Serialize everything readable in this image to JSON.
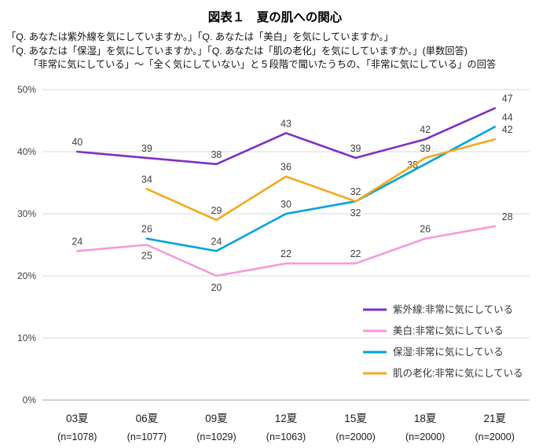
{
  "title": "図表１　夏の肌への関心",
  "subtitle_lines": [
    "「Q. あなたは紫外線を気にしていますか。」「Q. あなたは「美白」を気にしていますか。」",
    "「Q. あなたは「保湿」を気にしていますか。」「Q. あなたは「肌の老化」を気にしていますか。」(単数回答)",
    "「非常に気にしている」～「全く気にしていない」と５段階で聞いたうちの、「非常に気にしている」の回答"
  ],
  "chart_data": {
    "type": "line",
    "title": "図表１　夏の肌への関心",
    "categories": [
      "03夏",
      "06夏",
      "09夏",
      "12夏",
      "15夏",
      "18夏",
      "21夏"
    ],
    "category_sublabels": [
      "(n=1078)",
      "(n=1077)",
      "(n=1029)",
      "(n=1063)",
      "(n=2000)",
      "(n=2000)",
      "(n=2000)"
    ],
    "series": [
      {
        "name": "紫外線:非常に気にしている",
        "color": "#7C2FC9",
        "values": [
          40,
          39,
          38,
          43,
          39,
          42,
          47
        ]
      },
      {
        "name": "美白:非常に気にしている",
        "color": "#F799DB",
        "values": [
          24,
          25,
          20,
          22,
          22,
          26,
          28
        ]
      },
      {
        "name": "保湿:非常に気にしている",
        "color": "#00A3DC",
        "values": [
          null,
          26,
          24,
          30,
          32,
          38,
          44
        ]
      },
      {
        "name": "肌の老化:非常に気にしている",
        "color": "#F5A81C",
        "values": [
          null,
          34,
          29,
          36,
          32,
          39,
          42
        ]
      }
    ],
    "ylim": [
      0,
      50
    ],
    "ytick_step": 10,
    "ytick_suffix": "%",
    "grid": true,
    "legend_position": "inside-bottom-right"
  }
}
